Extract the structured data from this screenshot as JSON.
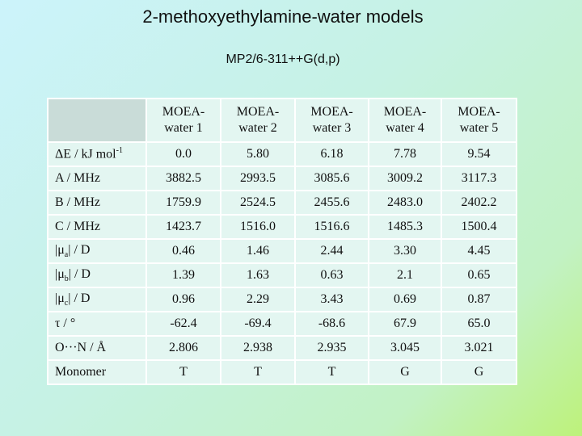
{
  "title": "2-methoxyethylamine-water models",
  "subtitle": "MP2/6-311++G(d,p)",
  "table": {
    "headers": [
      [
        "MOEA-",
        "water 1"
      ],
      [
        "MOEA-",
        "water 2"
      ],
      [
        "MOEA-",
        "water 3"
      ],
      [
        "MOEA-",
        "water 4"
      ],
      [
        "MOEA-",
        "water 5"
      ]
    ],
    "rows": [
      {
        "label": [
          {
            "text": "ΔE / kJ mol"
          },
          {
            "text": "-1",
            "pos": "sup"
          }
        ],
        "cells": [
          "0.0",
          "5.80",
          "6.18",
          "7.78",
          "9.54"
        ]
      },
      {
        "label": [
          {
            "text": "A / MHz"
          }
        ],
        "cells": [
          "3882.5",
          "2993.5",
          "3085.6",
          "3009.2",
          "3117.3"
        ]
      },
      {
        "label": [
          {
            "text": "B / MHz"
          }
        ],
        "cells": [
          "1759.9",
          "2524.5",
          "2455.6",
          "2483.0",
          "2402.2"
        ]
      },
      {
        "label": [
          {
            "text": "C / MHz"
          }
        ],
        "cells": [
          "1423.7",
          "1516.0",
          "1516.6",
          "1485.3",
          "1500.4"
        ]
      },
      {
        "label": [
          {
            "text": "|μ"
          },
          {
            "text": "a",
            "pos": "sub"
          },
          {
            "text": "| / D"
          }
        ],
        "cells": [
          "0.46",
          "1.46",
          "2.44",
          "3.30",
          "4.45"
        ]
      },
      {
        "label": [
          {
            "text": "|μ"
          },
          {
            "text": "b",
            "pos": "sub"
          },
          {
            "text": "| / D"
          }
        ],
        "cells": [
          "1.39",
          "1.63",
          "0.63",
          "2.1",
          "0.65"
        ]
      },
      {
        "label": [
          {
            "text": "|μ"
          },
          {
            "text": "c",
            "pos": "sub"
          },
          {
            "text": "| / D"
          }
        ],
        "cells": [
          "0.96",
          "2.29",
          "3.43",
          "0.69",
          "0.87"
        ]
      },
      {
        "label": [
          {
            "text": "τ / °"
          }
        ],
        "cells": [
          "-62.4",
          "-69.4",
          "-68.6",
          "67.9",
          "65.0"
        ]
      },
      {
        "label": [
          {
            "text": "O···N / Å"
          }
        ],
        "cells": [
          "2.806",
          "2.938",
          "2.935",
          "3.045",
          "3.021"
        ]
      },
      {
        "label": [
          {
            "text": "Monomer"
          }
        ],
        "cells": [
          "T",
          "T",
          "T",
          "G",
          "G"
        ]
      }
    ]
  }
}
